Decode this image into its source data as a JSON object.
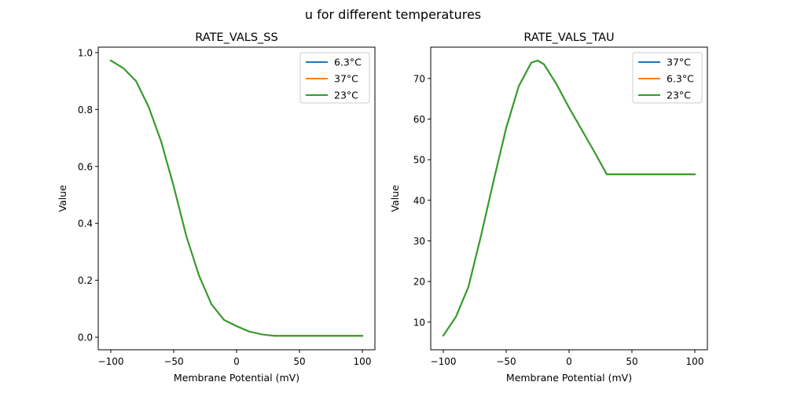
{
  "figure_title": "u for different temperatures",
  "chart_data": [
    {
      "type": "line",
      "title": "RATE_VALS_SS",
      "xlabel": "Membrane Potential (mV)",
      "ylabel": "Value",
      "xlim": [
        -110,
        110
      ],
      "ylim": [
        -0.044,
        1.019
      ],
      "xticks": [
        -100,
        -50,
        0,
        50,
        100
      ],
      "xtick_labels": [
        "−100",
        "−50",
        "0",
        "50",
        "100"
      ],
      "yticks": [
        0.0,
        0.2,
        0.4,
        0.6,
        0.8,
        1.0
      ],
      "ytick_labels": [
        "0.0",
        "0.2",
        "0.4",
        "0.6",
        "0.8",
        "1.0"
      ],
      "grid": false,
      "legend_position": "top-right",
      "x": [
        -100,
        -90,
        -80,
        -70,
        -60,
        -50,
        -40,
        -30,
        -20,
        -10,
        0,
        10,
        20,
        30,
        40,
        50,
        60,
        70,
        80,
        90,
        100
      ],
      "series": [
        {
          "name": "6.3°C",
          "color": "#1f77b4",
          "values": [
            0.972,
            0.945,
            0.9,
            0.81,
            0.688,
            0.53,
            0.356,
            0.218,
            0.116,
            0.061,
            0.039,
            0.02,
            0.01,
            0.005,
            0.005,
            0.005,
            0.005,
            0.005,
            0.005,
            0.005,
            0.005
          ]
        },
        {
          "name": "37°C",
          "color": "#ff7f0e",
          "values": [
            0.972,
            0.945,
            0.9,
            0.81,
            0.688,
            0.53,
            0.356,
            0.218,
            0.116,
            0.061,
            0.039,
            0.02,
            0.01,
            0.005,
            0.005,
            0.005,
            0.005,
            0.005,
            0.005,
            0.005,
            0.005
          ]
        },
        {
          "name": "23°C",
          "color": "#2ca02c",
          "values": [
            0.972,
            0.945,
            0.9,
            0.81,
            0.688,
            0.53,
            0.356,
            0.218,
            0.116,
            0.061,
            0.039,
            0.02,
            0.01,
            0.005,
            0.005,
            0.005,
            0.005,
            0.005,
            0.005,
            0.005,
            0.005
          ]
        }
      ]
    },
    {
      "type": "line",
      "title": "RATE_VALS_TAU",
      "xlabel": "Membrane Potential (mV)",
      "ylabel": "Value",
      "xlim": [
        -110,
        110
      ],
      "ylim": [
        3.2,
        77.7
      ],
      "xticks": [
        -100,
        -50,
        0,
        50,
        100
      ],
      "xtick_labels": [
        "−100",
        "−50",
        "0",
        "50",
        "100"
      ],
      "yticks": [
        10,
        20,
        30,
        40,
        50,
        60,
        70
      ],
      "ytick_labels": [
        "10",
        "20",
        "30",
        "40",
        "50",
        "60",
        "70"
      ],
      "grid": false,
      "legend_position": "top-right",
      "x": [
        -100,
        -90,
        -80,
        -70,
        -60,
        -50,
        -40,
        -30,
        -25,
        -20,
        -10,
        0,
        10,
        20,
        30,
        40,
        50,
        60,
        70,
        80,
        90,
        100
      ],
      "series": [
        {
          "name": "37°C",
          "color": "#1f77b4",
          "values": [
            6.7,
            11.3,
            18.7,
            31.3,
            44.8,
            57.8,
            68.1,
            73.9,
            74.4,
            73.5,
            68.6,
            62.8,
            57.4,
            52.0,
            46.4,
            46.4,
            46.4,
            46.4,
            46.4,
            46.4,
            46.4,
            46.4
          ]
        },
        {
          "name": "6.3°C",
          "color": "#ff7f0e",
          "values": [
            6.7,
            11.3,
            18.7,
            31.3,
            44.8,
            57.8,
            68.1,
            73.9,
            74.4,
            73.5,
            68.6,
            62.8,
            57.4,
            52.0,
            46.4,
            46.4,
            46.4,
            46.4,
            46.4,
            46.4,
            46.4,
            46.4
          ]
        },
        {
          "name": "23°C",
          "color": "#2ca02c",
          "values": [
            6.7,
            11.3,
            18.7,
            31.3,
            44.8,
            57.8,
            68.1,
            73.9,
            74.4,
            73.5,
            68.6,
            62.8,
            57.4,
            52.0,
            46.4,
            46.4,
            46.4,
            46.4,
            46.4,
            46.4,
            46.4,
            46.4
          ]
        }
      ]
    }
  ]
}
